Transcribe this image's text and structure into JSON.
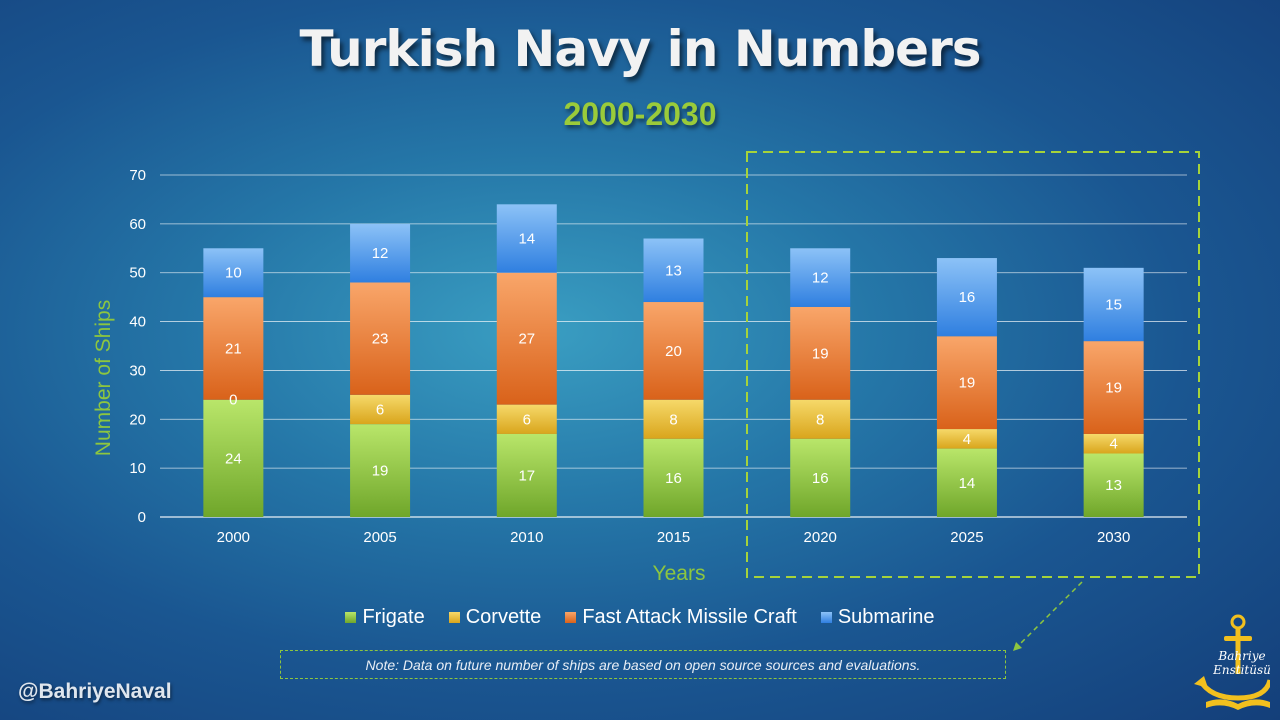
{
  "title": "Turkish Navy in Numbers",
  "subtitle": "2000-2030",
  "ylabel": "Number of Ships",
  "xlabel": "Years",
  "note": "Note: Data on future number of ships are based on open source sources and evaluations.",
  "handle": "@BahriyeNaval",
  "logo_text": [
    "Bahriye",
    "Enstitüsü"
  ],
  "colors": {
    "Frigate": "#8bc33f",
    "Corvette": "#f0c428",
    "Fast Attack Missile Craft": "#ef7d2f",
    "Submarine": "#4c96e8",
    "accent_green": "#8dc63f"
  },
  "chart_data": {
    "type": "bar",
    "stacked": true,
    "categories": [
      "2000",
      "2005",
      "2010",
      "2015",
      "2020",
      "2025",
      "2030"
    ],
    "series": [
      {
        "name": "Frigate",
        "values": [
          24,
          19,
          17,
          16,
          16,
          14,
          13
        ]
      },
      {
        "name": "Corvette",
        "values": [
          0,
          6,
          6,
          8,
          8,
          4,
          4
        ]
      },
      {
        "name": "Fast Attack Missile Craft",
        "values": [
          21,
          23,
          27,
          20,
          19,
          19,
          19
        ]
      },
      {
        "name": "Submarine",
        "values": [
          10,
          12,
          14,
          13,
          12,
          16,
          15
        ]
      }
    ],
    "ylim": [
      0,
      70
    ],
    "yticks": [
      0,
      10,
      20,
      30,
      40,
      50,
      60,
      70
    ],
    "grid": true,
    "legend": "bottom",
    "highlighted_categories": [
      "2020",
      "2025",
      "2030"
    ]
  }
}
